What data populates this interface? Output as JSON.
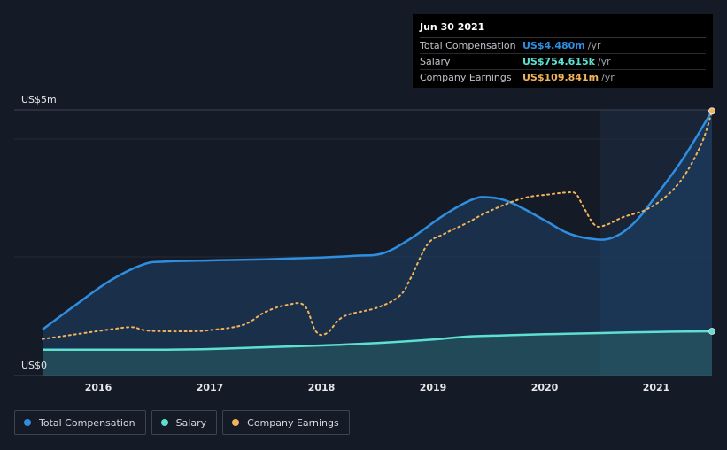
{
  "tooltip": {
    "date": "Jun 30 2021",
    "rows": [
      {
        "label": "Total Compensation",
        "value": "US$4.480m",
        "unit": "/yr",
        "color": "#2f8ee0"
      },
      {
        "label": "Salary",
        "value": "US$754.615k",
        "unit": "/yr",
        "color": "#5de0d0"
      },
      {
        "label": "Company Earnings",
        "value": "US$109.841m",
        "unit": "/yr",
        "color": "#f2b45a"
      }
    ]
  },
  "legend": [
    {
      "label": "Total Compensation",
      "color": "#2f8ee0"
    },
    {
      "label": "Salary",
      "color": "#5de0d0"
    },
    {
      "label": "Company Earnings",
      "color": "#f2b45a"
    }
  ],
  "chart_data": {
    "type": "line",
    "y_axis_labels": [
      "US$5m",
      "US$0"
    ],
    "ylim": [
      0,
      4.5
    ],
    "xlim": [
      2015.5,
      2021.5
    ],
    "x_ticks": [
      2016,
      2017,
      2018,
      2019,
      2020,
      2021
    ],
    "highlight_start": 2020.5,
    "series": [
      {
        "name": "Total Compensation",
        "color": "#2f8ee0",
        "points": [
          [
            2015.5,
            0.78
          ],
          [
            2015.8,
            1.2
          ],
          [
            2016.1,
            1.6
          ],
          [
            2016.4,
            1.88
          ],
          [
            2016.6,
            1.93
          ],
          [
            2017.0,
            1.95
          ],
          [
            2017.5,
            1.97
          ],
          [
            2018.0,
            2.0
          ],
          [
            2018.3,
            2.03
          ],
          [
            2018.55,
            2.07
          ],
          [
            2018.8,
            2.32
          ],
          [
            2019.1,
            2.72
          ],
          [
            2019.35,
            2.98
          ],
          [
            2019.5,
            3.02
          ],
          [
            2019.7,
            2.93
          ],
          [
            2020.0,
            2.63
          ],
          [
            2020.2,
            2.42
          ],
          [
            2020.4,
            2.32
          ],
          [
            2020.6,
            2.33
          ],
          [
            2020.8,
            2.58
          ],
          [
            2021.0,
            3.05
          ],
          [
            2021.25,
            3.7
          ],
          [
            2021.5,
            4.48
          ]
        ]
      },
      {
        "name": "Salary",
        "color": "#5de0d0",
        "points": [
          [
            2015.5,
            0.44
          ],
          [
            2016.0,
            0.44
          ],
          [
            2016.6,
            0.44
          ],
          [
            2017.0,
            0.45
          ],
          [
            2017.5,
            0.48
          ],
          [
            2018.0,
            0.51
          ],
          [
            2018.5,
            0.55
          ],
          [
            2019.0,
            0.61
          ],
          [
            2019.3,
            0.66
          ],
          [
            2019.6,
            0.68
          ],
          [
            2020.0,
            0.7
          ],
          [
            2020.5,
            0.72
          ],
          [
            2021.0,
            0.74
          ],
          [
            2021.5,
            0.75
          ]
        ]
      },
      {
        "name": "Company Earnings",
        "color": "#f2b45a",
        "points": [
          [
            2015.5,
            0.62
          ],
          [
            2015.8,
            0.7
          ],
          [
            2016.1,
            0.78
          ],
          [
            2016.3,
            0.82
          ],
          [
            2016.45,
            0.76
          ],
          [
            2016.8,
            0.75
          ],
          [
            2017.0,
            0.77
          ],
          [
            2017.3,
            0.86
          ],
          [
            2017.5,
            1.08
          ],
          [
            2017.7,
            1.2
          ],
          [
            2017.85,
            1.18
          ],
          [
            2017.95,
            0.75
          ],
          [
            2018.05,
            0.72
          ],
          [
            2018.2,
            1.0
          ],
          [
            2018.5,
            1.15
          ],
          [
            2018.7,
            1.35
          ],
          [
            2018.8,
            1.65
          ],
          [
            2018.95,
            2.22
          ],
          [
            2019.1,
            2.4
          ],
          [
            2019.3,
            2.58
          ],
          [
            2019.5,
            2.78
          ],
          [
            2019.8,
            3.0
          ],
          [
            2020.05,
            3.07
          ],
          [
            2020.2,
            3.1
          ],
          [
            2020.28,
            3.08
          ],
          [
            2020.35,
            2.85
          ],
          [
            2020.45,
            2.55
          ],
          [
            2020.55,
            2.55
          ],
          [
            2020.7,
            2.68
          ],
          [
            2020.95,
            2.85
          ],
          [
            2021.2,
            3.25
          ],
          [
            2021.4,
            3.9
          ],
          [
            2021.5,
            4.48
          ]
        ]
      }
    ]
  }
}
